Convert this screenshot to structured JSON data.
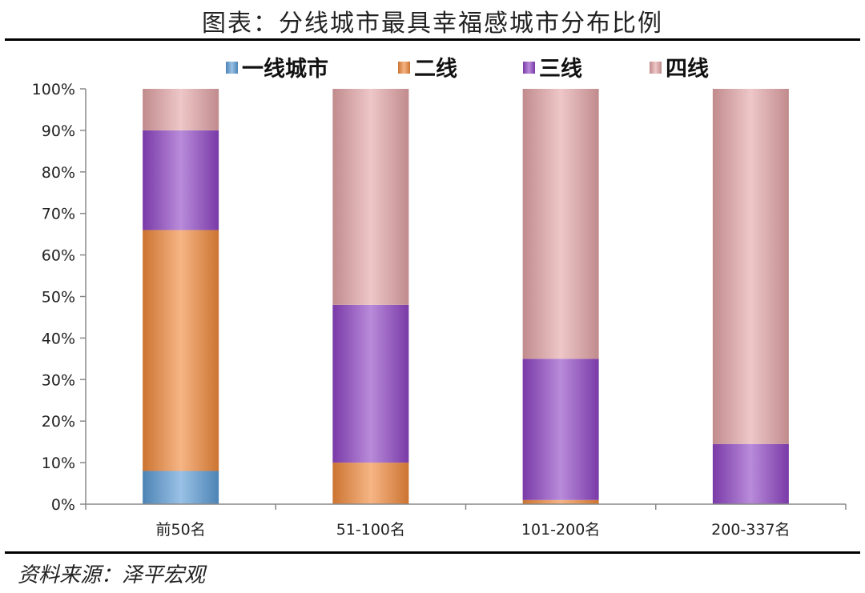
{
  "title": "图表：分线城市最具幸福感城市分布比例",
  "source": "资料来源：泽平宏观",
  "chart_data": {
    "type": "bar",
    "stacked": true,
    "categories": [
      "前50名",
      "51-100名",
      "101-200名",
      "200-337名"
    ],
    "series": [
      {
        "name": "一线城市",
        "values": [
          8,
          0,
          0,
          0
        ],
        "color": "#5b9bd5"
      },
      {
        "name": "二线",
        "values": [
          58,
          10,
          1,
          0
        ],
        "color": "#f0883a"
      },
      {
        "name": "三线",
        "values": [
          24,
          38,
          34,
          14.5
        ],
        "color": "#8e44c4"
      },
      {
        "name": "四线",
        "values": [
          10,
          52,
          65,
          85.5
        ],
        "color": "#e3a4a6"
      }
    ],
    "ylim": [
      0,
      100
    ],
    "yticks": [
      "0%",
      "10%",
      "20%",
      "30%",
      "40%",
      "50%",
      "60%",
      "70%",
      "80%",
      "90%",
      "100%"
    ],
    "legend_position": "top",
    "grid": false
  }
}
